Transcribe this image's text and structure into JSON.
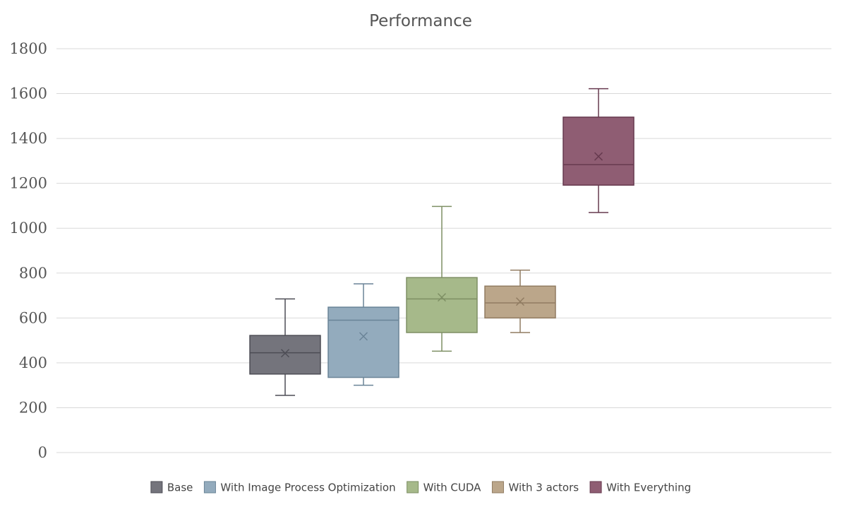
{
  "chart_data": {
    "type": "box",
    "title": "Performance",
    "xlabel": "",
    "ylabel": "",
    "ylim": [
      0,
      1800
    ],
    "yticks": [
      0,
      200,
      400,
      600,
      800,
      1000,
      1200,
      1400,
      1600,
      1800
    ],
    "grid": true,
    "legend_position": "bottom",
    "series": [
      {
        "name": "Base",
        "color": "#74747c",
        "stroke": "#4d4d55",
        "min": 255,
        "q1": 350,
        "median": 445,
        "q3": 522,
        "max": 685,
        "mean": 443
      },
      {
        "name": "With Image Process Optimization",
        "color": "#93abbd",
        "stroke": "#6a8497",
        "min": 300,
        "q1": 335,
        "median": 590,
        "q3": 648,
        "max": 752,
        "mean": 518
      },
      {
        "name": "With CUDA",
        "color": "#a6b98a",
        "stroke": "#7e8f64",
        "min": 452,
        "q1": 535,
        "median": 685,
        "q3": 780,
        "max": 1097,
        "mean": 692
      },
      {
        "name": "With 3 actors",
        "color": "#bba68a",
        "stroke": "#917c62",
        "min": 535,
        "q1": 600,
        "median": 667,
        "q3": 742,
        "max": 813,
        "mean": 673
      },
      {
        "name": "With Everything",
        "color": "#8f5d73",
        "stroke": "#673a4f",
        "min": 1070,
        "q1": 1192,
        "median": 1283,
        "q3": 1495,
        "max": 1622,
        "mean": 1320
      }
    ]
  }
}
